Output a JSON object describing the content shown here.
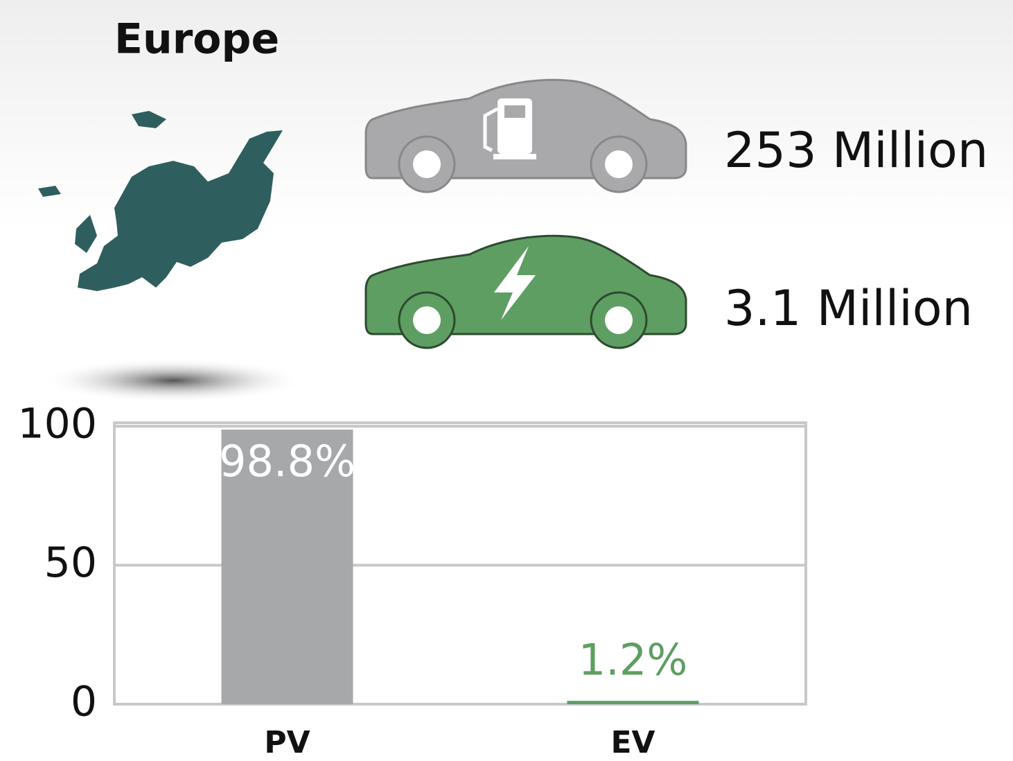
{
  "title": "Europe",
  "counts": [
    "253 Million",
    "3.1 Million"
  ],
  "chart_data": {
    "type": "bar",
    "categories": [
      "PV",
      "EV"
    ],
    "values": [
      98.8,
      1.2
    ],
    "value_labels": [
      "98.8%",
      "1.2%"
    ],
    "colors": [
      "#a7a8aa",
      "#5e9e62"
    ],
    "ylim": [
      0,
      100
    ],
    "yticks": [
      0,
      50,
      100
    ],
    "grid": true
  }
}
